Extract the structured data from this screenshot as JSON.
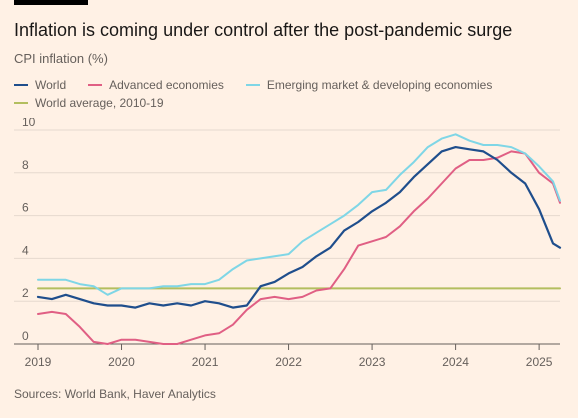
{
  "header": {
    "title": "Inflation is coming under control after the post-pandemic surge",
    "subtitle": "CPI inflation (%)"
  },
  "footer": {
    "source": "Sources: World Bank, Haver Analytics"
  },
  "colors": {
    "background": "#fff1e5",
    "world": "#1f4e8c",
    "advanced": "#e05f84",
    "emerging": "#7fd6e6",
    "average": "#b3be5f",
    "grid": "#e6d9ce"
  },
  "chart_data": {
    "type": "line",
    "title": "Inflation is coming under control after the post-pandemic surge",
    "ylabel": "CPI inflation (%)",
    "ylim": [
      0,
      10
    ],
    "yticks": [
      0,
      2,
      4,
      6,
      8,
      10
    ],
    "xlim": [
      "2019-01",
      "2025-04"
    ],
    "xticks": [
      "2019",
      "2020",
      "2021",
      "2022",
      "2023",
      "2024",
      "2025"
    ],
    "grid": true,
    "legend_position": "top",
    "series": [
      {
        "name": "World",
        "color": "#1f4e8c",
        "width": 2.2,
        "x": [
          "2019-01",
          "2019-03",
          "2019-05",
          "2019-07",
          "2019-09",
          "2019-11",
          "2020-01",
          "2020-03",
          "2020-05",
          "2020-07",
          "2020-09",
          "2020-11",
          "2021-01",
          "2021-03",
          "2021-05",
          "2021-07",
          "2021-09",
          "2021-11",
          "2022-01",
          "2022-03",
          "2022-05",
          "2022-07",
          "2022-09",
          "2022-11",
          "2023-01",
          "2023-03",
          "2023-05",
          "2023-07",
          "2023-09",
          "2023-11",
          "2024-01",
          "2024-03",
          "2024-05",
          "2024-07",
          "2024-09",
          "2024-11",
          "2025-01",
          "2025-03",
          "2025-04"
        ],
        "y": [
          2.2,
          2.1,
          2.3,
          2.1,
          1.9,
          1.8,
          1.8,
          1.7,
          1.9,
          1.8,
          1.9,
          1.8,
          2.0,
          1.9,
          1.7,
          1.8,
          2.7,
          2.9,
          3.3,
          3.6,
          4.1,
          4.5,
          5.3,
          5.7,
          6.2,
          6.6,
          7.1,
          7.8,
          8.4,
          9.0,
          9.2,
          9.1,
          9.0,
          8.6,
          8.0,
          7.5,
          6.3,
          4.7,
          4.5
        ]
      },
      {
        "name": "Advanced economies",
        "color": "#e05f84",
        "width": 2,
        "x": [
          "2019-01",
          "2019-03",
          "2019-05",
          "2019-07",
          "2019-09",
          "2019-11",
          "2020-01",
          "2020-03",
          "2020-05",
          "2020-07",
          "2020-09",
          "2020-11",
          "2021-01",
          "2021-03",
          "2021-05",
          "2021-07",
          "2021-09",
          "2021-11",
          "2022-01",
          "2022-03",
          "2022-05",
          "2022-07",
          "2022-09",
          "2022-11",
          "2023-01",
          "2023-03",
          "2023-05",
          "2023-07",
          "2023-09",
          "2023-11",
          "2024-01",
          "2024-03",
          "2024-05",
          "2024-07",
          "2024-09",
          "2024-11",
          "2025-01",
          "2025-03",
          "2025-04"
        ],
        "y": [
          1.4,
          1.5,
          1.4,
          0.8,
          0.1,
          0.0,
          0.2,
          0.2,
          0.1,
          0.0,
          0.0,
          0.2,
          0.4,
          0.5,
          0.9,
          1.6,
          2.1,
          2.2,
          2.1,
          2.2,
          2.5,
          2.6,
          3.5,
          4.6,
          4.8,
          5.0,
          5.5,
          6.2,
          6.8,
          7.5,
          8.2,
          8.6,
          8.6,
          8.7,
          9.0,
          8.9,
          8.0,
          7.5,
          6.6
        ]
      },
      {
        "name": "Emerging market & developing economies",
        "color": "#7fd6e6",
        "width": 2,
        "x": [
          "2019-01",
          "2019-03",
          "2019-05",
          "2019-07",
          "2019-09",
          "2019-11",
          "2020-01",
          "2020-03",
          "2020-05",
          "2020-07",
          "2020-09",
          "2020-11",
          "2021-01",
          "2021-03",
          "2021-05",
          "2021-07",
          "2021-09",
          "2021-11",
          "2022-01",
          "2022-03",
          "2022-05",
          "2022-07",
          "2022-09",
          "2022-11",
          "2023-01",
          "2023-03",
          "2023-05",
          "2023-07",
          "2023-09",
          "2023-11",
          "2024-01",
          "2024-03",
          "2024-05",
          "2024-07",
          "2024-09",
          "2024-11",
          "2025-01",
          "2025-03",
          "2025-04"
        ],
        "y": [
          3.0,
          3.0,
          3.0,
          2.8,
          2.7,
          2.3,
          2.6,
          2.6,
          2.6,
          2.7,
          2.7,
          2.8,
          2.8,
          3.0,
          3.5,
          3.9,
          4.0,
          4.1,
          4.2,
          4.8,
          5.2,
          5.6,
          6.0,
          6.5,
          7.1,
          7.2,
          7.9,
          8.5,
          9.2,
          9.6,
          9.8,
          9.5,
          9.3,
          9.3,
          9.2,
          8.9,
          8.3,
          7.6,
          6.7
        ]
      },
      {
        "name": "World average, 2010-19",
        "color": "#b3be5f",
        "width": 2,
        "x": [
          "2019-01",
          "2025-04"
        ],
        "y": [
          2.6,
          2.6
        ]
      }
    ]
  }
}
